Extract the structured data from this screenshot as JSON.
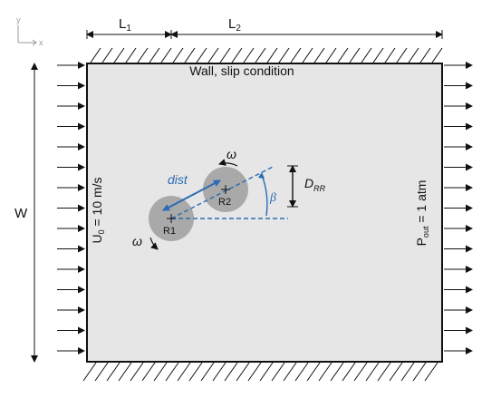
{
  "axes_icon": {
    "y": "y",
    "x": "x"
  },
  "dims": {
    "L1": "L",
    "L1_sub": "1",
    "L2": "L",
    "L2_sub": "2",
    "W": "W",
    "D_main": "D",
    "D_sub": "RR"
  },
  "wall": {
    "top_label": "Wall, slip condition"
  },
  "inlet": {
    "main": "U",
    "sub": "0",
    "rest": " = 10 m/s"
  },
  "outlet": {
    "main": "P",
    "sub": "out",
    "rest": " = 1 atm"
  },
  "rotors": [
    {
      "label": "R1",
      "omega": "ω"
    },
    {
      "label": "R2",
      "omega": "ω"
    }
  ],
  "annotations": {
    "dist": "dist",
    "beta": "β"
  },
  "colors": {
    "domain_fill": "#e6e6e6",
    "rotor_fill": "#a9a9a9",
    "accent_blue": "#2a6bb5",
    "line": "#111111"
  }
}
